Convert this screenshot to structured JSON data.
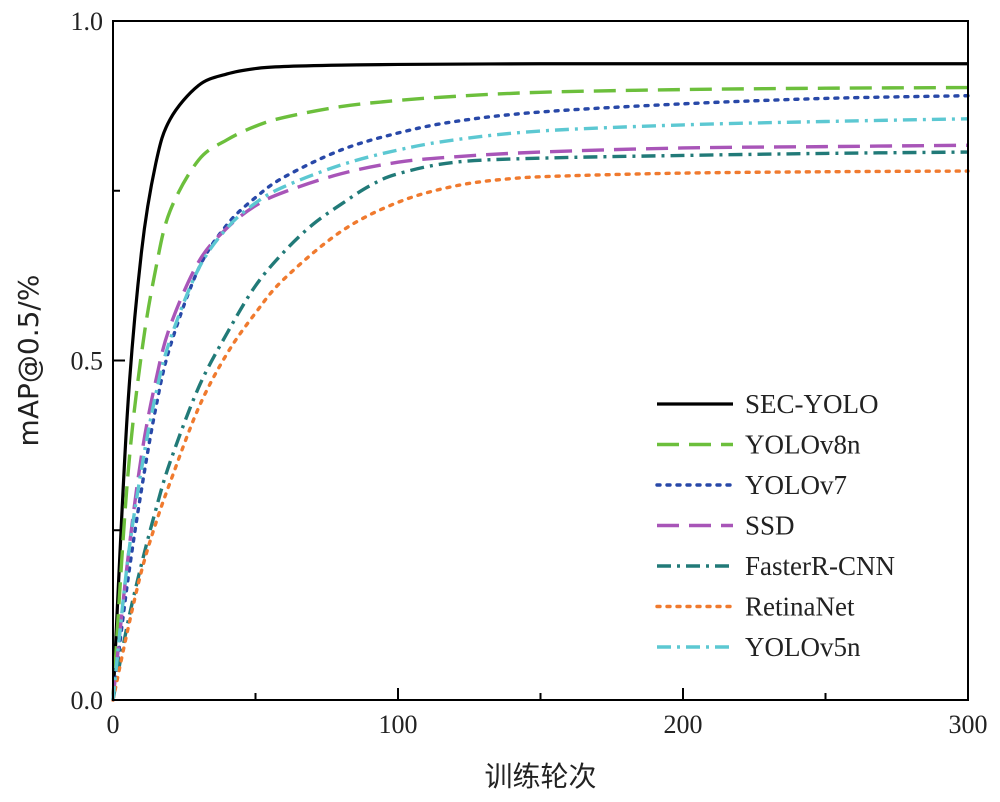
{
  "chart_data": {
    "type": "line",
    "title": "",
    "xlabel": "训练轮次",
    "ylabel": "mAP@0.5/%",
    "xlim": [
      0,
      300
    ],
    "ylim": [
      0,
      1.0
    ],
    "xticks": [
      "0",
      "100",
      "200",
      "300"
    ],
    "yticks": [
      "0.0",
      "0.5",
      "1.0"
    ],
    "grid": false,
    "legend_position": "bottom-right",
    "series": [
      {
        "name": "SEC-YOLO",
        "color": "#000000",
        "style": "solid",
        "x": [
          0,
          5,
          10,
          15,
          20,
          30,
          40,
          50,
          60,
          80,
          100,
          150,
          200,
          250,
          300
        ],
        "y": [
          0,
          0.42,
          0.66,
          0.79,
          0.855,
          0.905,
          0.922,
          0.93,
          0.933,
          0.935,
          0.936,
          0.937,
          0.937,
          0.937,
          0.937
        ]
      },
      {
        "name": "YOLOv8n",
        "color": "#6cbf3c",
        "style": "dash",
        "x": [
          0,
          5,
          10,
          15,
          20,
          30,
          40,
          50,
          60,
          80,
          100,
          120,
          150,
          200,
          250,
          300
        ],
        "y": [
          0,
          0.32,
          0.51,
          0.635,
          0.72,
          0.795,
          0.825,
          0.845,
          0.858,
          0.874,
          0.883,
          0.889,
          0.895,
          0.899,
          0.901,
          0.902
        ]
      },
      {
        "name": "YOLOv7",
        "color": "#2848a8",
        "style": "dot",
        "x": [
          0,
          5,
          10,
          15,
          20,
          30,
          40,
          50,
          60,
          80,
          100,
          120,
          150,
          200,
          250,
          300
        ],
        "y": [
          0,
          0.17,
          0.31,
          0.43,
          0.52,
          0.635,
          0.7,
          0.74,
          0.77,
          0.81,
          0.835,
          0.852,
          0.866,
          0.878,
          0.886,
          0.89
        ]
      },
      {
        "name": "SSD",
        "color": "#a855b8",
        "style": "dash",
        "x": [
          0,
          5,
          10,
          15,
          20,
          30,
          40,
          50,
          60,
          80,
          100,
          120,
          150,
          200,
          250,
          300
        ],
        "y": [
          0,
          0.2,
          0.36,
          0.47,
          0.55,
          0.645,
          0.695,
          0.728,
          0.748,
          0.775,
          0.792,
          0.8,
          0.807,
          0.813,
          0.815,
          0.817
        ]
      },
      {
        "name": "FasterR-CNN",
        "color": "#217a78",
        "style": "dashdot",
        "x": [
          0,
          5,
          10,
          15,
          20,
          30,
          40,
          50,
          60,
          70,
          80,
          90,
          100,
          120,
          150,
          200,
          250,
          300
        ],
        "y": [
          0,
          0.11,
          0.2,
          0.28,
          0.35,
          0.46,
          0.54,
          0.61,
          0.66,
          0.7,
          0.73,
          0.757,
          0.775,
          0.792,
          0.798,
          0.802,
          0.805,
          0.807
        ]
      },
      {
        "name": "RetinaNet",
        "color": "#f07a2e",
        "style": "dot",
        "x": [
          0,
          5,
          10,
          15,
          20,
          30,
          40,
          50,
          60,
          80,
          100,
          120,
          140,
          160,
          200,
          250,
          300
        ],
        "y": [
          0,
          0.1,
          0.19,
          0.26,
          0.32,
          0.43,
          0.51,
          0.57,
          0.62,
          0.69,
          0.733,
          0.757,
          0.768,
          0.772,
          0.776,
          0.778,
          0.779
        ]
      },
      {
        "name": "YOLOv5n",
        "color": "#5cc8d2",
        "style": "dashdot",
        "x": [
          0,
          5,
          10,
          15,
          20,
          30,
          40,
          50,
          60,
          80,
          100,
          120,
          150,
          200,
          250,
          300
        ],
        "y": [
          0,
          0.2,
          0.34,
          0.45,
          0.53,
          0.635,
          0.695,
          0.732,
          0.756,
          0.788,
          0.81,
          0.825,
          0.838,
          0.847,
          0.852,
          0.856
        ]
      }
    ]
  }
}
